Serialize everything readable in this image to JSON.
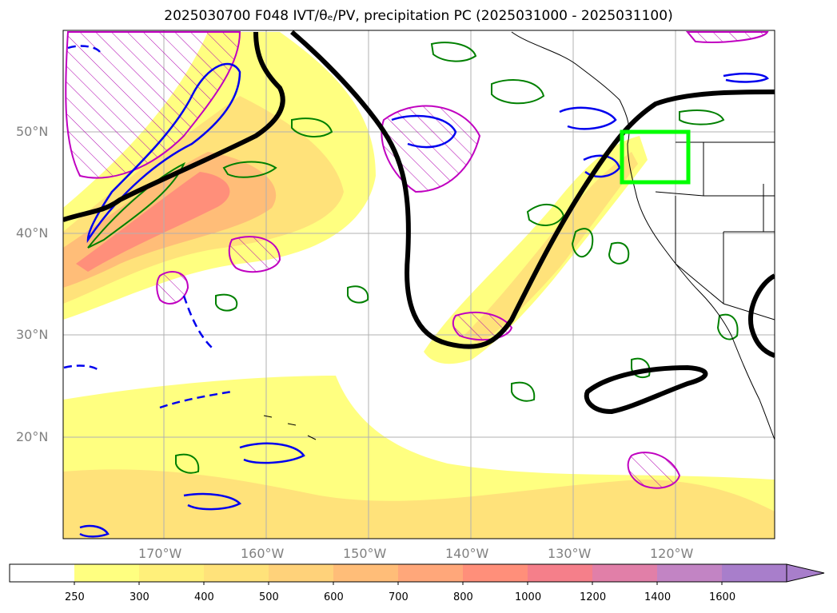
{
  "title": "2025030700 F048 IVT/θₑ/PV, precipitation PC (2025031000 - 2025031100)",
  "map": {
    "lat_ticks": [
      {
        "value": 50,
        "label": "50°N"
      },
      {
        "value": 40,
        "label": "40°N"
      },
      {
        "value": 30,
        "label": "30°N"
      },
      {
        "value": 20,
        "label": "20°N"
      }
    ],
    "lon_ticks": [
      {
        "value": -170,
        "label": "170°W"
      },
      {
        "value": -160,
        "label": "160°W"
      },
      {
        "value": -150,
        "label": "150°W"
      },
      {
        "value": -140,
        "label": "140°W"
      },
      {
        "value": -130,
        "label": "130°W"
      },
      {
        "value": -120,
        "label": "120°W"
      }
    ],
    "extent": {
      "lon_min": -180,
      "lon_max": -110,
      "lat_min": 10,
      "lat_max": 60
    },
    "highlight_box": {
      "lon_min": -125,
      "lon_max": -118.5,
      "lat_min": 45,
      "lat_max": 50,
      "color": "#00ff00"
    }
  },
  "colorbar": {
    "levels": [
      "250",
      "300",
      "400",
      "500",
      "600",
      "700",
      "800",
      "1000",
      "1200",
      "1400",
      "1600"
    ],
    "colors": [
      "#ffffff",
      "#ffff80",
      "#fff07a",
      "#ffe27a",
      "#ffd27a",
      "#ffbd78",
      "#ffa77a",
      "#ff8f7a",
      "#f57f8a",
      "#e17fa8",
      "#c284c4",
      "#a87ecb"
    ]
  }
}
